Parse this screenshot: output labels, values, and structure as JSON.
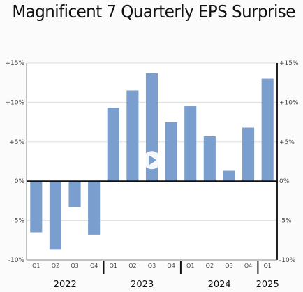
{
  "chart_data": {
    "type": "bar",
    "title": "Magnificent 7 Quarterly EPS Surprise",
    "xlabel": "",
    "ylabel": "",
    "ylim": [
      -10,
      15
    ],
    "yticks": [
      {
        "value": 15,
        "label": "+15%"
      },
      {
        "value": 10,
        "label": "+10%"
      },
      {
        "value": 5,
        "label": "+5%"
      },
      {
        "value": 0,
        "label": "0%"
      },
      {
        "value": -5,
        "label": "-5%"
      },
      {
        "value": -10,
        "label": "-10%"
      }
    ],
    "categories": [
      "Q1",
      "Q2",
      "Q3",
      "Q4",
      "Q1",
      "Q2",
      "Q3",
      "Q4",
      "Q1",
      "Q2",
      "Q3",
      "Q4",
      "Q1"
    ],
    "years": [
      {
        "label": "2022",
        "count": 4
      },
      {
        "label": "2023",
        "count": 4
      },
      {
        "label": "2024",
        "count": 4
      },
      {
        "label": "2025",
        "count": 1
      }
    ],
    "values": [
      -6.5,
      -8.7,
      -3.3,
      -6.8,
      9.3,
      11.5,
      13.7,
      7.5,
      9.5,
      5.7,
      1.3,
      6.8,
      13.0
    ],
    "bar_color": "#7a9fce",
    "grid": true,
    "legend": "none",
    "play_icon": "play-icon"
  }
}
